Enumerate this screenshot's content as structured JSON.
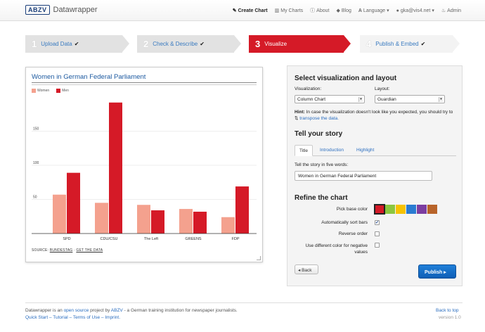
{
  "app": {
    "logo": "ABZV",
    "name": "Datawrapper"
  },
  "nav": {
    "create_chart": "Create Chart",
    "my_charts": "My Charts",
    "about": "About",
    "blog": "Blog",
    "language": "Language",
    "user": "gka@vis4.net",
    "admin": "Admin"
  },
  "steps": [
    {
      "num": "1",
      "label": "Upload Data"
    },
    {
      "num": "2",
      "label": "Check & Describe"
    },
    {
      "num": "3",
      "label": "Visualize"
    },
    {
      "num": "4",
      "label": "Publish & Embed"
    }
  ],
  "chart": {
    "title": "Women in German Federal Parliament",
    "legend": [
      "Women",
      "Men"
    ],
    "source_label": "SOURCE:",
    "source_name": "BUNDESTAG",
    "get_data": "GET THE DATA"
  },
  "chart_data": {
    "type": "bar",
    "title": "Women in German Federal Parliament",
    "categories": [
      "SPD",
      "CDU/CSU",
      "The Left",
      "GREENS",
      "FDP"
    ],
    "series": [
      {
        "name": "Women",
        "values": [
          57,
          45,
          42,
          36,
          24
        ]
      },
      {
        "name": "Men",
        "values": [
          89,
          192,
          34,
          32,
          69
        ]
      }
    ],
    "ylim": [
      0,
      200
    ],
    "yticks": [
      50,
      100,
      150
    ],
    "colors": {
      "Women": "#f4a18e",
      "Men": "#d51a27"
    }
  },
  "panel": {
    "heading_vis": "Select visualization and layout",
    "vis_label": "Visualization:",
    "vis_value": "Column Chart",
    "layout_label": "Layout:",
    "layout_value": "Guardian",
    "hint_bold": "Hint:",
    "hint_text": " In case the visualization doesn't look like you expected, you should try to ",
    "hint_link": "transpose the data.",
    "heading_story": "Tell your story",
    "tabs": [
      "Title",
      "Introduction",
      "Highlight"
    ],
    "story_label": "Tell the story in five words:",
    "story_value": "Women in German Federal Parliament",
    "heading_refine": "Refine the chart",
    "base_color_label": "Pick base color",
    "base_colors": [
      "#d51a27",
      "#8cc63f",
      "#f6c200",
      "#2a7bd1",
      "#7c3ea0",
      "#b8642a"
    ],
    "opt_sort": "Automatically sort bars",
    "opt_reverse": "Reverse order",
    "opt_negative": "Use different color for negative values",
    "back": "Back",
    "publish": "Publish"
  },
  "footer": {
    "line1_a": "Datawrapper is an ",
    "open_source": "open source",
    "line1_b": " project by ",
    "abzv": "ABZV",
    "line1_c": " - a German training institution for newspaper journalists.",
    "quick_start": "Quick Start",
    "tutorial": "Tutorial",
    "terms": "Terms of Use",
    "imprint": "Imprint.",
    "back_to_top": "Back to top",
    "version": "version 1.0"
  }
}
